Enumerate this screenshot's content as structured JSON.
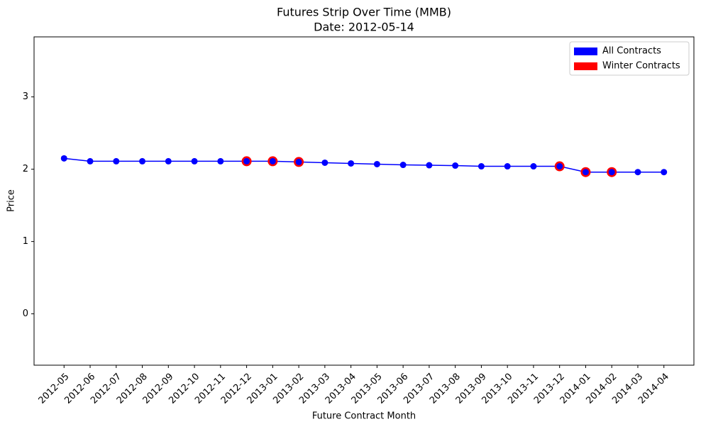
{
  "chart_data": {
    "type": "line",
    "title": "Futures Strip Over Time (MMB)",
    "subtitle": "Date: 2012-05-14",
    "x_label": "Future Contract Month",
    "y_label": "Price",
    "categories": [
      "2012-05",
      "2012-06",
      "2012-07",
      "2012-08",
      "2012-09",
      "2012-10",
      "2012-11",
      "2012-12",
      "2013-01",
      "2013-02",
      "2013-03",
      "2013-04",
      "2013-05",
      "2013-06",
      "2013-07",
      "2013-08",
      "2013-09",
      "2013-10",
      "2013-11",
      "2013-12",
      "2014-01",
      "2014-02",
      "2014-03",
      "2014-04"
    ],
    "series": [
      {
        "name": "All Contracts",
        "color": "blue",
        "line": true,
        "values": [
          2.15,
          2.11,
          2.11,
          2.11,
          2.11,
          2.11,
          2.11,
          2.11,
          2.11,
          2.1,
          2.09,
          2.08,
          2.07,
          2.06,
          2.055,
          2.05,
          2.04,
          2.04,
          2.04,
          2.04,
          1.96,
          1.96,
          1.96,
          1.96
        ]
      },
      {
        "name": "Winter Contracts",
        "color": "red",
        "line": false,
        "values": [
          null,
          null,
          null,
          null,
          null,
          null,
          null,
          2.11,
          2.11,
          2.1,
          null,
          null,
          null,
          null,
          null,
          null,
          null,
          null,
          null,
          2.04,
          1.96,
          1.96,
          null,
          null
        ]
      }
    ],
    "ylim": [
      -0.71,
      3.83
    ],
    "yticks": [
      0,
      1,
      2,
      3
    ],
    "grid": false,
    "legend": "upper right"
  }
}
